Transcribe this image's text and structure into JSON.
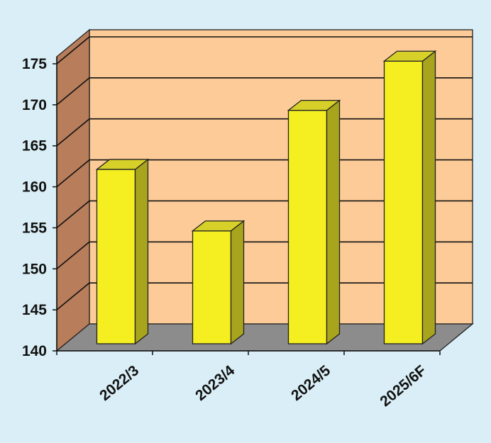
{
  "chart_data": {
    "type": "bar",
    "categories": [
      "2022/3",
      "2023/4",
      "2024/5",
      "2025/6F"
    ],
    "values": [
      162.3,
      154.8,
      169.5,
      175.5
    ],
    "ylim": [
      140,
      175
    ],
    "yticks": [
      140,
      145,
      150,
      155,
      160,
      165,
      170,
      175
    ],
    "grid": true,
    "title": "",
    "xlabel": "",
    "ylabel": "",
    "colors": {
      "background": "#d9eef6",
      "back_wall": "#fccb98",
      "side_wall": "#b87d5a",
      "floor": "#8c8c8c",
      "bar_front": "#f5ef22",
      "bar_side": "#a8a41e",
      "bar_top": "#d6d028"
    }
  }
}
